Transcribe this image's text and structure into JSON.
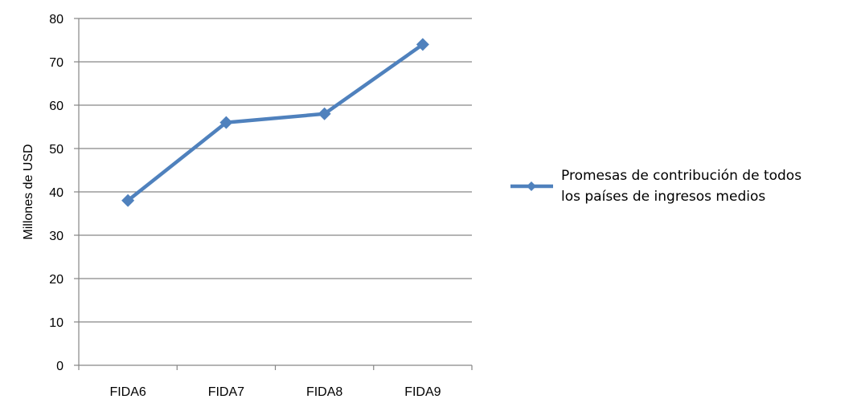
{
  "chart_data": {
    "type": "line",
    "title": "",
    "xlabel": "",
    "ylabel": "Millones de USD",
    "categories": [
      "FIDA6",
      "FIDA7",
      "FIDA8",
      "FIDA9"
    ],
    "series": [
      {
        "name_lines": [
          "Promesas de contribución de todos",
          "los países de ingresos medios"
        ],
        "values": [
          38,
          56,
          58,
          74
        ],
        "color": "#4F81BD",
        "marker": "diamond"
      }
    ],
    "ylim": [
      0,
      80
    ],
    "yticks": [
      0,
      10,
      20,
      30,
      40,
      50,
      60,
      70,
      80
    ],
    "grid": true,
    "legend_position": "right"
  }
}
